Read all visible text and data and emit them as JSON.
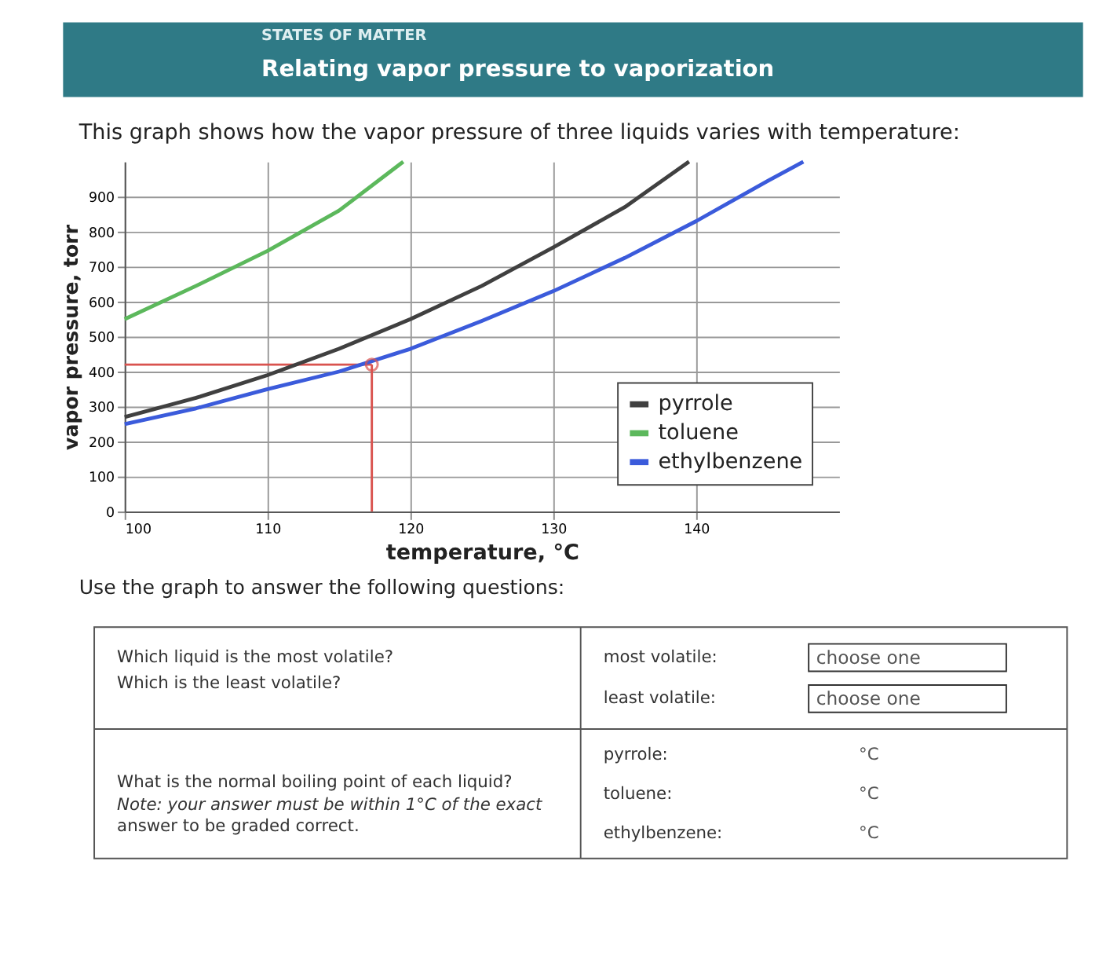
{
  "chart_data": {
    "type": "line",
    "title": "Relating vapor pressure to vaporization",
    "subtitle": "This graph shows how the vapor pressure of three liquids varies with temperature:",
    "xlabel": "temperature, °C",
    "ylabel": "vapor pressure, torr",
    "xlim": [
      100,
      150
    ],
    "ylim": [
      0,
      1000
    ],
    "xticks": [
      100,
      110,
      120,
      130,
      140
    ],
    "yticks": [
      0,
      100,
      200,
      300,
      400,
      500,
      600,
      700,
      800,
      900
    ],
    "grid": true,
    "legend": "bottom right",
    "series": [
      {
        "name": "pyrrole",
        "color": "#404040",
        "x": [
          100,
          105,
          110,
          115,
          120,
          125,
          130,
          135,
          139.5
        ],
        "values": [
          270,
          325,
          390,
          465,
          550,
          645,
          755,
          870,
          1000
        ]
      },
      {
        "name": "toluene",
        "color": "#5cb85c",
        "x": [
          100,
          105,
          110,
          115,
          119.5
        ],
        "values": [
          550,
          645,
          745,
          860,
          1000
        ]
      },
      {
        "name": "ethylbenzene",
        "color": "#3b5bdb",
        "x": [
          100,
          105,
          110,
          115,
          120,
          125,
          130,
          135,
          140,
          145,
          147.5
        ],
        "values": [
          250,
          295,
          350,
          400,
          465,
          545,
          630,
          725,
          830,
          945,
          1000
        ]
      },
      {
        "type": "scatter",
        "color": "#d9534f",
        "marker": "circle",
        "x": [
          117.3
        ],
        "values": [
          420
        ]
      }
    ],
    "ref_lines": [
      {
        "axis": "y",
        "value": 420,
        "color": "#d9534f"
      },
      {
        "axis": "x",
        "value": 117.3,
        "color": "#d9534f"
      }
    ],
    "annotations": [
      "STATES OF MATTER",
      "Use the graph to answer the following questions:",
      "Which liquid is the most volatile?",
      "Which is the least volatile?",
      "most volatile:",
      "least volatile:",
      "choose one",
      "choose one",
      "What is the normal boiling point of each liquid?",
      "Note: your answer must be within 1°C of the exact",
      "answer to be graded correct.",
      "pyrrole:",
      "toluene:",
      "ethylbenzene:",
      "°C",
      "°C",
      "°C"
    ]
  }
}
